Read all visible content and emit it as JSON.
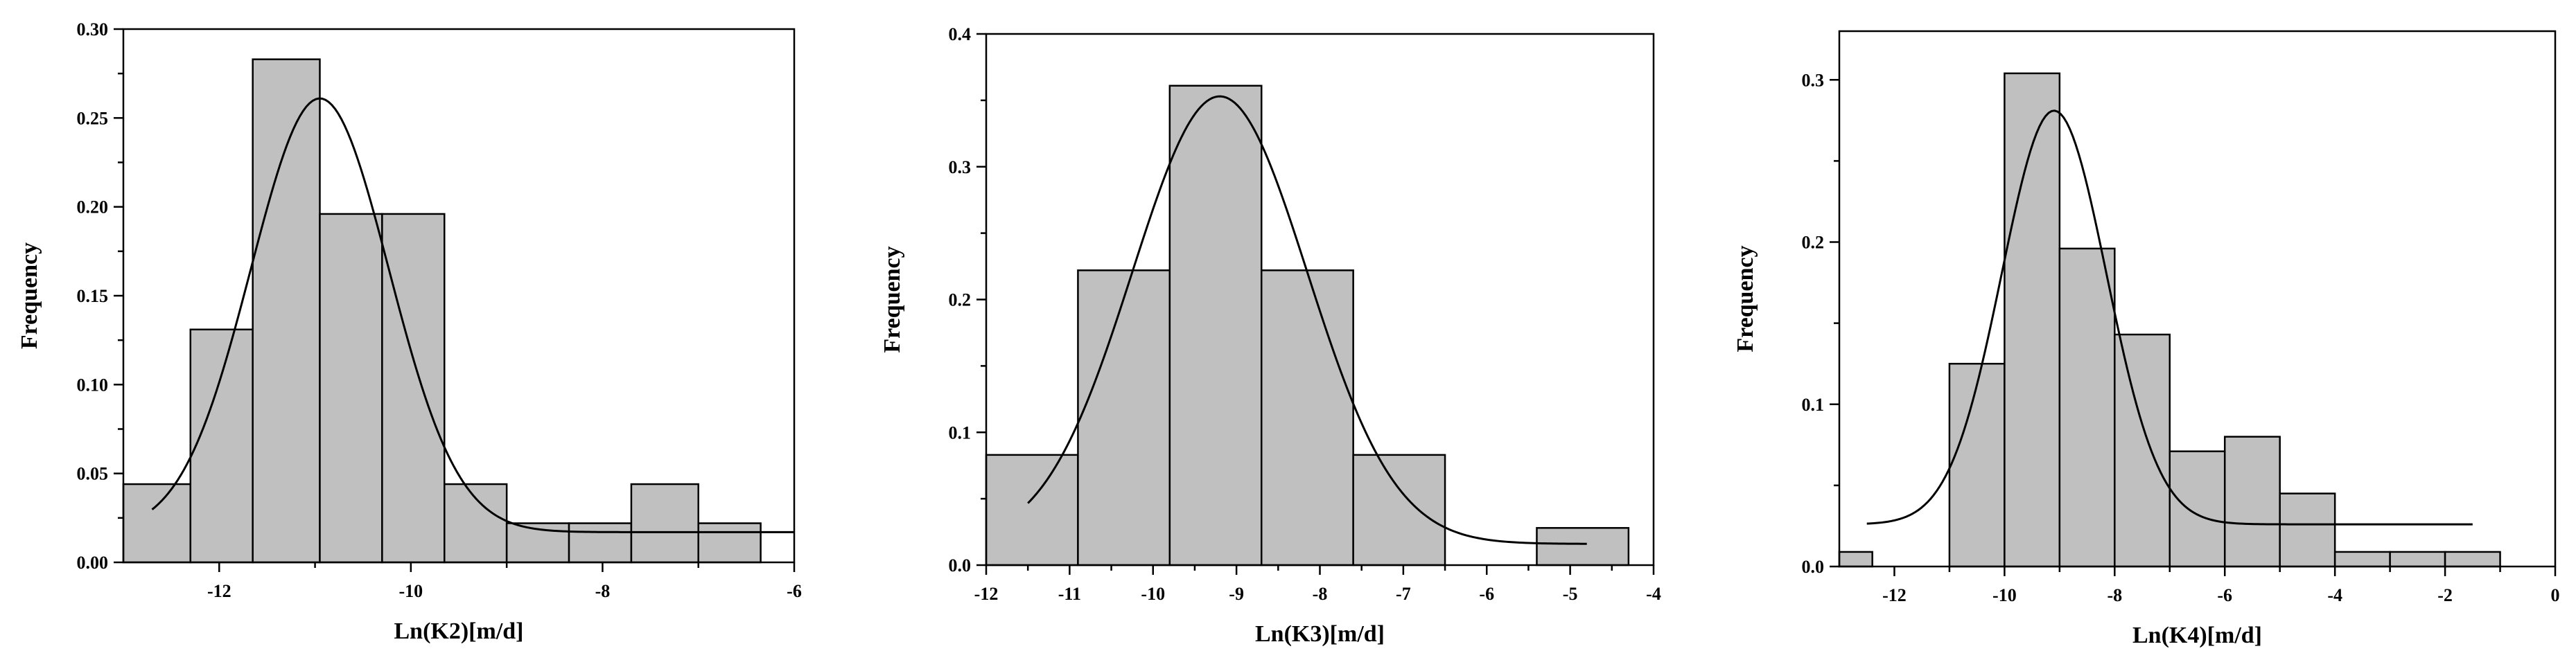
{
  "chart_data": [
    {
      "type": "bar",
      "xlabel": "Ln(K2)[m/d]",
      "ylabel": "Frequency",
      "xlim": [
        -13,
        -6
      ],
      "ylim": [
        0,
        0.3
      ],
      "xticks": [
        -12,
        -10,
        -8,
        -6
      ],
      "yticks": [
        0.0,
        0.05,
        0.1,
        0.15,
        0.2,
        0.25,
        0.3
      ],
      "ytick_labels": [
        "0.00",
        "0.05",
        "0.10",
        "0.15",
        "0.20",
        "0.25",
        "0.30"
      ],
      "xtick_labels": [
        "-12",
        "-10",
        "-8",
        "-6"
      ],
      "bins": [
        {
          "x0": -13.0,
          "x1": -12.3,
          "value": 0.044
        },
        {
          "x0": -12.3,
          "x1": -11.65,
          "value": 0.131
        },
        {
          "x0": -11.65,
          "x1": -10.95,
          "value": 0.283
        },
        {
          "x0": -10.95,
          "x1": -10.3,
          "value": 0.196
        },
        {
          "x0": -10.3,
          "x1": -9.65,
          "value": 0.196
        },
        {
          "x0": -9.65,
          "x1": -9.0,
          "value": 0.044
        },
        {
          "x0": -9.0,
          "x1": -8.35,
          "value": 0.022
        },
        {
          "x0": -8.35,
          "x1": -7.7,
          "value": 0.022
        },
        {
          "x0": -7.7,
          "x1": -7.0,
          "value": 0.044
        },
        {
          "x0": -7.0,
          "x1": -6.35,
          "value": 0.022
        }
      ],
      "fit_curve": {
        "xmin": -12.7,
        "xmax": -6.0,
        "mean": -10.95,
        "sigma": 0.72,
        "peak": 0.261,
        "baseline": 0.017
      }
    },
    {
      "type": "bar",
      "xlabel": "Ln(K3)[m/d]",
      "ylabel": "Frequency",
      "xlim": [
        -12,
        -4
      ],
      "ylim": [
        0,
        0.4
      ],
      "xticks": [
        -12,
        -11,
        -10,
        -9,
        -8,
        -7,
        -6,
        -5,
        -4
      ],
      "xtick_labels": [
        "-12",
        "-11",
        "-10",
        "-9",
        "-8",
        "-7",
        "-6",
        "-5",
        "-4"
      ],
      "yticks": [
        0.0,
        0.1,
        0.2,
        0.3,
        0.4
      ],
      "ytick_labels": [
        "0.0",
        "0.1",
        "0.2",
        "0.3",
        "0.4"
      ],
      "bins": [
        {
          "x0": -12.0,
          "x1": -10.9,
          "value": 0.083
        },
        {
          "x0": -10.9,
          "x1": -9.8,
          "value": 0.222
        },
        {
          "x0": -9.8,
          "x1": -8.7,
          "value": 0.361
        },
        {
          "x0": -8.7,
          "x1": -7.6,
          "value": 0.222
        },
        {
          "x0": -7.6,
          "x1": -6.5,
          "value": 0.083
        },
        {
          "x0": -5.4,
          "x1": -4.3,
          "value": 0.028
        }
      ],
      "fit_curve": {
        "xmin": -11.5,
        "xmax": -4.8,
        "mean": -9.2,
        "sigma": 1.05,
        "peak": 0.353,
        "baseline": 0.016
      }
    },
    {
      "type": "bar",
      "xlabel": "Ln(K4)[m/d]",
      "ylabel": "Frequency",
      "xlim": [
        -13,
        0
      ],
      "ylim": [
        0,
        0.33
      ],
      "xticks": [
        -12,
        -10,
        -8,
        -6,
        -4,
        -2,
        0
      ],
      "xtick_labels": [
        "-12",
        "-10",
        "-8",
        "-6",
        "-4",
        "-2",
        "0"
      ],
      "yticks": [
        0.0,
        0.1,
        0.2,
        0.3
      ],
      "ytick_labels": [
        "0.0",
        "0.1",
        "0.2",
        "0.3"
      ],
      "bins": [
        {
          "x0": -13.0,
          "x1": -12.4,
          "value": 0.009
        },
        {
          "x0": -11.0,
          "x1": -10.0,
          "value": 0.125
        },
        {
          "x0": -10.0,
          "x1": -9.0,
          "value": 0.304
        },
        {
          "x0": -9.0,
          "x1": -8.0,
          "value": 0.196
        },
        {
          "x0": -8.0,
          "x1": -7.0,
          "value": 0.143
        },
        {
          "x0": -7.0,
          "x1": -6.0,
          "value": 0.071
        },
        {
          "x0": -6.0,
          "x1": -5.0,
          "value": 0.08
        },
        {
          "x0": -5.0,
          "x1": -4.0,
          "value": 0.045
        },
        {
          "x0": -4.0,
          "x1": -3.0,
          "value": 0.009
        },
        {
          "x0": -3.0,
          "x1": -2.0,
          "value": 0.009
        },
        {
          "x0": -2.0,
          "x1": -1.0,
          "value": 0.009
        }
      ],
      "fit_curve": {
        "xmin": -12.5,
        "xmax": -1.5,
        "mean": -9.1,
        "sigma": 0.95,
        "peak": 0.281,
        "baseline": 0.026
      }
    }
  ]
}
